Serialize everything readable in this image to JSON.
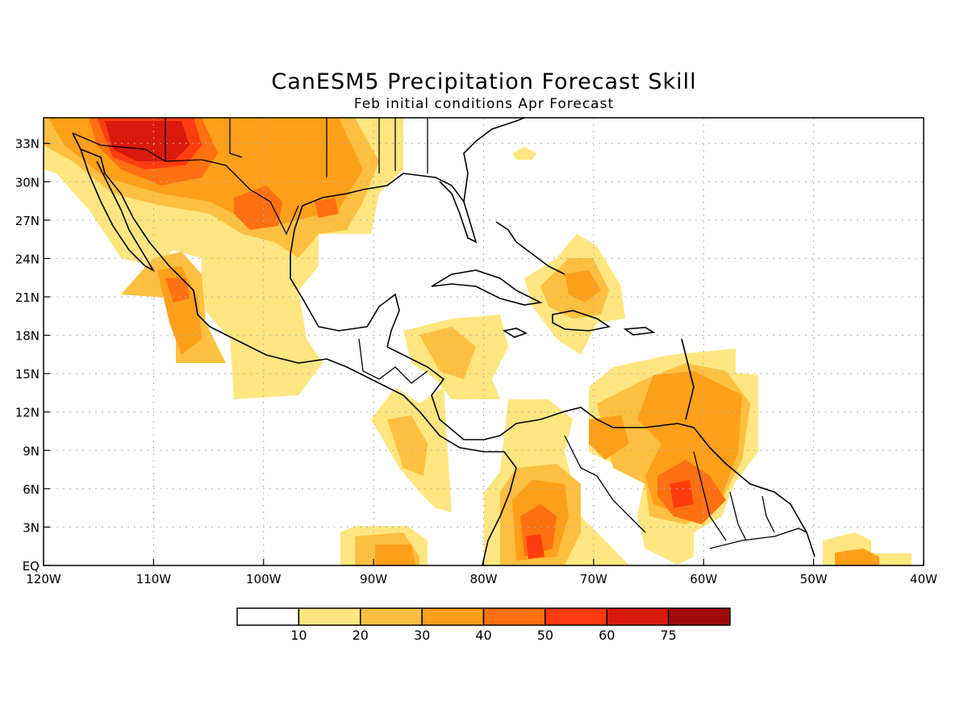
{
  "title": "CanESM5 Precipitation Forecast Skill",
  "subtitle": "Feb initial conditions  Apr Forecast",
  "lat_labels": [
    "33N",
    "30N",
    "27N",
    "24N",
    "21N",
    "18N",
    "15N",
    "12N",
    "9N",
    "6N",
    "3N",
    "EQ"
  ],
  "lon_labels": [
    "120W",
    "110W",
    "100W",
    "90W",
    "80W",
    "70W",
    "60W",
    "50W",
    "40W"
  ],
  "legend": {
    "labels": [
      "10",
      "20",
      "30",
      "40",
      "50",
      "60",
      "75"
    ],
    "colors": [
      "#ffffff",
      "#ffe680",
      "#ffbf40",
      "#ff9f1a",
      "#ff7010",
      "#ff3c10",
      "#d91a0c",
      "#a00a0a"
    ]
  },
  "map": {
    "lon_range": [
      -120,
      -40
    ],
    "lat_range": [
      0,
      35
    ],
    "grid": "dotted"
  }
}
